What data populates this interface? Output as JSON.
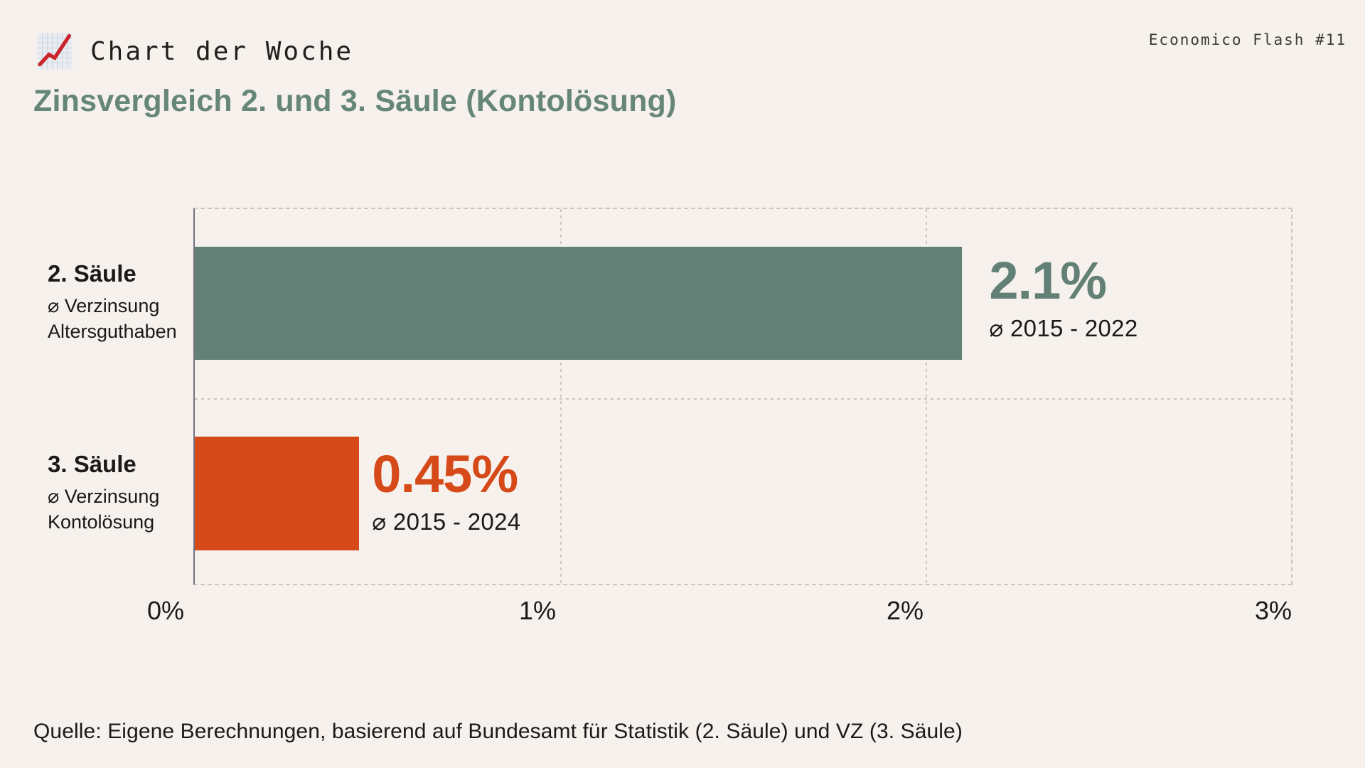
{
  "header": {
    "badge_title": "Chart der Woche",
    "badge_icon": "chart-increasing-emoji",
    "issue": "Economico Flash #11"
  },
  "title": "Zinsvergleich 2. und 3. Säule (Kontolösung)",
  "source": "Quelle: Eigene Berechnungen, basierend auf Bundesamt für Statistik (2. Säule) und VZ (3. Säule)",
  "colors": {
    "background": "#F6F1ED",
    "title_green": "#67867A",
    "bar_green": "#628076",
    "bar_orange": "#D54A18",
    "text": "#1A1A16",
    "grid": "#CCC5BF",
    "axis": "#71717F"
  },
  "chart_data": {
    "type": "bar",
    "orientation": "horizontal",
    "title": "Zinsvergleich 2. und 3. Säule (Kontolösung)",
    "xlim": [
      0,
      3
    ],
    "x_ticks": [
      "0%",
      "1%",
      "2%",
      "3%"
    ],
    "grid": "dotted vertical gridlines at 1% and 2%, dotted row separator, dotted plot frame",
    "rows": [
      {
        "label": "2. Säule",
        "sublabel": "⌀ Verzinsung Altersguthaben",
        "value": 2.1,
        "value_label": "2.1%",
        "period": "⌀ 2015 - 2022",
        "color": "#628076"
      },
      {
        "label": "3. Säule",
        "sublabel": "⌀ Verzinsung Kontolösung",
        "value": 0.45,
        "value_label": "0.45%",
        "period": "⌀ 2015 - 2024",
        "color": "#D54A18"
      }
    ]
  }
}
